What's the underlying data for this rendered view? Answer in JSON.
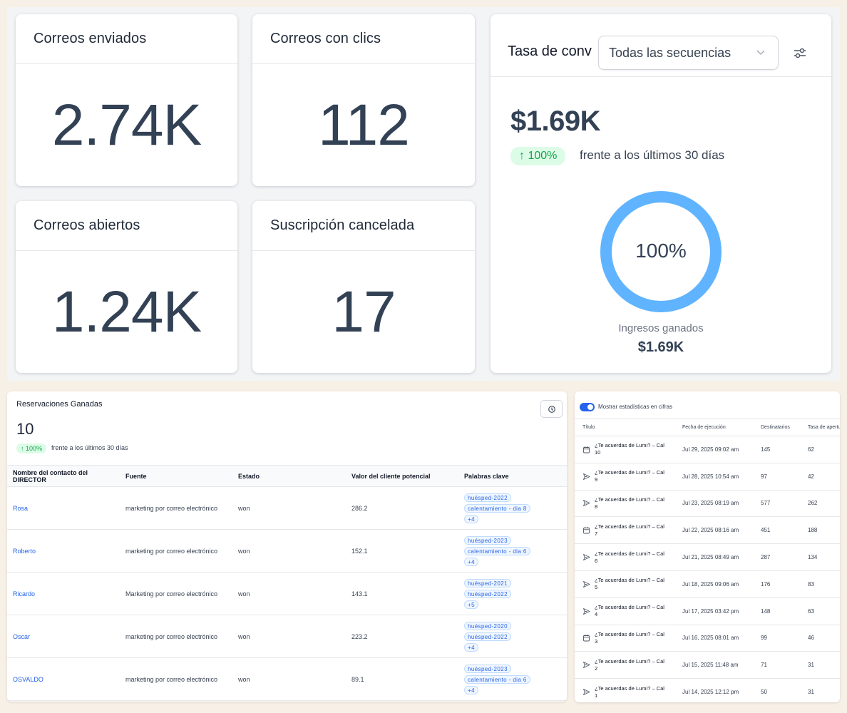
{
  "metrics": {
    "sent": {
      "label": "Correos enviados",
      "value": "2.74K"
    },
    "clicks": {
      "label": "Correos con clics",
      "value": "112"
    },
    "opened": {
      "label": "Correos abiertos",
      "value": "1.24K"
    },
    "unsubscribed": {
      "label": "Suscripción cancelada",
      "value": "17"
    }
  },
  "conversion": {
    "title": "Tasa de conv",
    "select_value": "Todas las secuencias",
    "amount": "$1.69K",
    "change": "↑ 100%",
    "compare": "frente a los últimos 30 días",
    "donut_label": "100%",
    "donut_fraction": 1.0,
    "income_label": "Ingresos ganados",
    "income_value": "$1.69K",
    "accent_color": "#60b4ff"
  },
  "reservations": {
    "title": "Reservaciones Ganadas",
    "count": "10",
    "change": "↑ 100%",
    "compare": "frente a los últimos 30 días",
    "columns": [
      "Nombre del contacto del DIRECTOR",
      "Fuente",
      "Estado",
      "Valor del cliente potencial",
      "Palabras clave"
    ],
    "rows": [
      {
        "name": "Rosa",
        "source": "marketing por correo electrónico",
        "status": "won",
        "value": "286.2",
        "k1": "huésped-2022",
        "k2": "calentamiento - dia 8",
        "more": "+4"
      },
      {
        "name": "Roberto",
        "source": "marketing por correo electrónico",
        "status": "won",
        "value": "152.1",
        "k1": "huésped-2023",
        "k2": "calentamiento - dia 6",
        "more": "+4"
      },
      {
        "name": "Ricardo",
        "source": "Marketing por correo electrónico",
        "status": "won",
        "value": "143.1",
        "k1": "huésped-2021",
        "k2": "huésped-2022",
        "more": "+5"
      },
      {
        "name": "Oscar",
        "source": "marketing por correo electrónico",
        "status": "won",
        "value": "223.2",
        "k1": "huésped-2020",
        "k2": "huésped-2022",
        "more": "+4"
      },
      {
        "name": "OSVALDO",
        "source": "marketing por correo electrónico",
        "status": "won",
        "value": "89.1",
        "k1": "huésped-2023",
        "k2": "calentamiento - dia 6",
        "more": "+4"
      }
    ]
  },
  "sequences": {
    "toggle_label": "Mostrar estadísticas en cifras",
    "columns": [
      "Título",
      "Fecha de ejecución",
      "Destinatarios",
      "Tasa de apertura"
    ],
    "rows": [
      {
        "icon": "calendar-icon",
        "title": "¿Te acuerdas de Lumi? – Cal 10",
        "date": "Jul 29, 2025 09:02 am",
        "recipients": "145",
        "open": "62"
      },
      {
        "icon": "send-icon",
        "title": "¿Te acuerdas de Lumi? – Cal 9",
        "date": "Jul 28, 2025 10:54 am",
        "recipients": "97",
        "open": "42"
      },
      {
        "icon": "send-icon",
        "title": "¿Te acuerdas de Lumi? – Cal 8",
        "date": "Jul 23, 2025 08:19 am",
        "recipients": "577",
        "open": "262"
      },
      {
        "icon": "calendar-icon",
        "title": "¿Te acuerdas de Lumi? – Cal 7",
        "date": "Jul 22, 2025 08:16 am",
        "recipients": "451",
        "open": "188"
      },
      {
        "icon": "send-icon",
        "title": "¿Te acuerdas de Lumi? – Cal 6",
        "date": "Jul 21, 2025 08:49 am",
        "recipients": "287",
        "open": "134"
      },
      {
        "icon": "send-icon",
        "title": "¿Te acuerdas de Lumi? – Cal 5",
        "date": "Jul 18, 2025 09:06 am",
        "recipients": "176",
        "open": "83"
      },
      {
        "icon": "send-icon",
        "title": "¿Te acuerdas de Lumi? – Cal 4",
        "date": "Jul 17, 2025 03:42 pm",
        "recipients": "148",
        "open": "63"
      },
      {
        "icon": "calendar-icon",
        "title": "¿Te acuerdas de Lumi? – Cal 3",
        "date": "Jul 16, 2025 08:01 am",
        "recipients": "99",
        "open": "46"
      },
      {
        "icon": "send-icon",
        "title": "¿Te acuerdas de Lumi? – Cal 2",
        "date": "Jul 15, 2025 11:48 am",
        "recipients": "71",
        "open": "31"
      },
      {
        "icon": "send-icon",
        "title": "¿Te acuerdas de Lumi? – Cal 1",
        "date": "Jul 14, 2025 12:12 pm",
        "recipients": "50",
        "open": "31"
      }
    ]
  }
}
